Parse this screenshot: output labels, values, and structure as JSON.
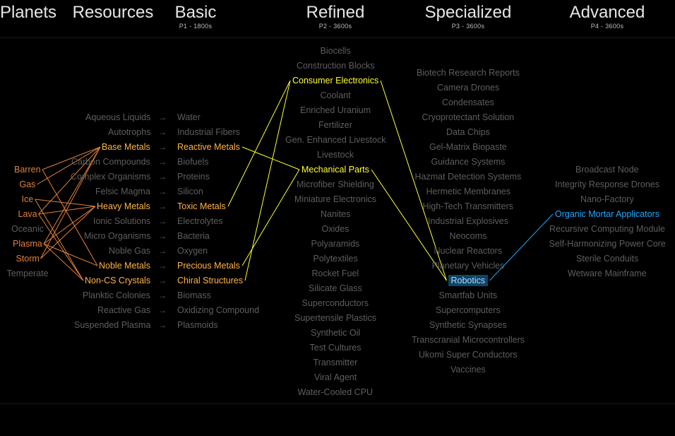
{
  "headers": [
    {
      "title": "Planets",
      "subtitle": ""
    },
    {
      "title": "Resources",
      "subtitle": ""
    },
    {
      "title": "Basic",
      "subtitle": "P1 - 1800s"
    },
    {
      "title": "Refined",
      "subtitle": "P2 - 3600s"
    },
    {
      "title": "Specialized",
      "subtitle": "P3 - 3600s"
    },
    {
      "title": "Advanced",
      "subtitle": "P4 - 3600s"
    }
  ],
  "colors": {
    "orange": "#e0803a",
    "amber": "#ffb347",
    "yellow": "#ffff33",
    "cyan": "#22a8ff",
    "dim": "#5e5e5e",
    "selected_bg": "#0f4466"
  },
  "planets": [
    "Barren",
    "Gas",
    "Ice",
    "Lava",
    "Oceanic",
    "Plasma",
    "Storm",
    "Temperate"
  ],
  "resources": [
    "Aqueous Liquids",
    "Autotrophs",
    "Base Metals",
    "Carbon Compounds",
    "Complex Organisms",
    "Felsic Magma",
    "Heavy Metals",
    "Ionic Solutions",
    "Micro Organisms",
    "Noble Gas",
    "Noble Metals",
    "Non-CS Crystals",
    "Planktic Colonies",
    "Reactive Gas",
    "Suspended Plasma"
  ],
  "arrow": "→",
  "basic": [
    "Water",
    "Industrial Fibers",
    "Reactive Metals",
    "Biofuels",
    "Proteins",
    "Silicon",
    "Toxic Metals",
    "Electrolytes",
    "Bacteria",
    "Oxygen",
    "Precious Metals",
    "Chiral Structures",
    "Biomass",
    "Oxidizing Compound",
    "Plasmoids"
  ],
  "refined": [
    "Biocells",
    "Construction Blocks",
    "Consumer Electronics",
    "Coolant",
    "Enriched Uranium",
    "Fertilizer",
    "Gen. Enhanced Livestock",
    "Livestock",
    "Mechanical Parts",
    "Microfiber Shielding",
    "Miniature Electronics",
    "Nanites",
    "Oxides",
    "Polyaramids",
    "Polytextiles",
    "Rocket Fuel",
    "Silicate Glass",
    "Superconductors",
    "Supertensile Plastics",
    "Synthetic Oil",
    "Test Cultures",
    "Transmitter",
    "Viral Agent",
    "Water-Cooled CPU"
  ],
  "specialized": [
    "Biotech Research Reports",
    "Camera Drones",
    "Condensates",
    "Cryoprotectant Solution",
    "Data Chips",
    "Gel-Matrix Biopaste",
    "Guidance Systems",
    "Hazmat Detection Systems",
    "Hermetic Membranes",
    "High-Tech Transmitters",
    "Industrial Explosives",
    "Neocoms",
    "Nuclear Reactors",
    "Planetary Vehicles",
    "Robotics",
    "Smartfab Units",
    "Supercomputers",
    "Synthetic Synapses",
    "Transcranial Microcontrollers",
    "Ukomi Super Conductors",
    "Vaccines"
  ],
  "advanced": [
    "Broadcast Node",
    "Integrity Response Drones",
    "Nano-Factory",
    "Organic Mortar Applicators",
    "Recursive Computing Module",
    "Self-Harmonizing Power Core",
    "Sterile Conduits",
    "Wetware Mainframe"
  ],
  "highlight": {
    "planets": [
      "Barren",
      "Gas",
      "Ice",
      "Lava",
      "Plasma",
      "Storm"
    ],
    "resources": [
      "Base Metals",
      "Heavy Metals",
      "Noble Metals",
      "Non-CS Crystals"
    ],
    "basic": [
      "Reactive Metals",
      "Toxic Metals",
      "Precious Metals",
      "Chiral Structures"
    ],
    "refined": [
      "Consumer Electronics",
      "Mechanical Parts"
    ],
    "specialized_selected": "Robotics",
    "advanced": [
      "Organic Mortar Applicators"
    ]
  },
  "links": {
    "planet_resource": [
      [
        "Barren",
        "Base Metals"
      ],
      [
        "Barren",
        "Noble Metals"
      ],
      [
        "Gas",
        "Base Metals"
      ],
      [
        "Ice",
        "Heavy Metals"
      ],
      [
        "Ice",
        "Non-CS Crystals"
      ],
      [
        "Lava",
        "Base Metals"
      ],
      [
        "Lava",
        "Heavy Metals"
      ],
      [
        "Lava",
        "Non-CS Crystals"
      ],
      [
        "Plasma",
        "Base Metals"
      ],
      [
        "Plasma",
        "Heavy Metals"
      ],
      [
        "Plasma",
        "Noble Metals"
      ],
      [
        "Plasma",
        "Non-CS Crystals"
      ],
      [
        "Storm",
        "Base Metals"
      ],
      [
        "Storm",
        "Heavy Metals"
      ]
    ],
    "basic_refined": [
      [
        "Reactive Metals",
        "Mechanical Parts"
      ],
      [
        "Toxic Metals",
        "Consumer Electronics"
      ],
      [
        "Precious Metals",
        "Mechanical Parts"
      ],
      [
        "Chiral Structures",
        "Consumer Electronics"
      ]
    ],
    "refined_specialized": [
      [
        "Consumer Electronics",
        "Robotics"
      ],
      [
        "Mechanical Parts",
        "Robotics"
      ]
    ],
    "specialized_advanced": [
      [
        "Robotics",
        "Organic Mortar Applicators"
      ]
    ]
  }
}
